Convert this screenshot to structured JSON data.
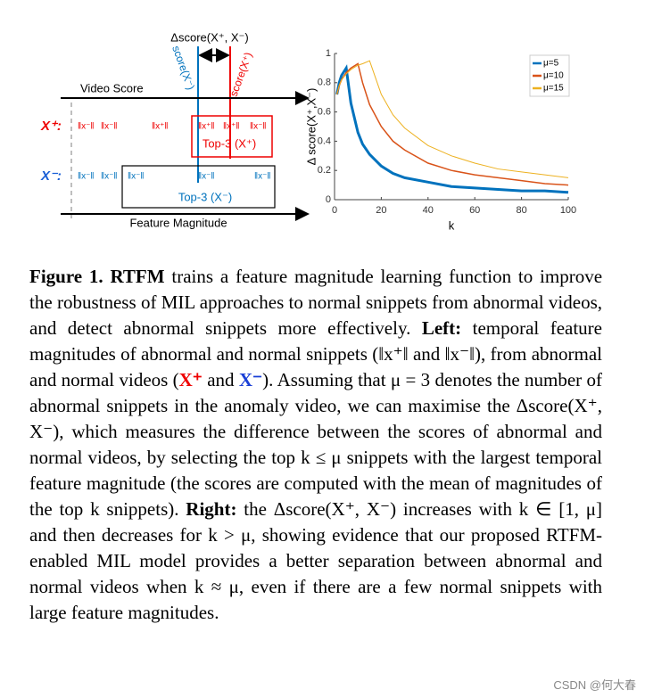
{
  "diagram": {
    "delta_title": "Δscore(X⁺, X⁻)",
    "score_neg": "score(X⁻)",
    "score_pos": "score(X⁺)",
    "video_score": "Video Score",
    "pos_label": "X⁺:",
    "neg_label": "X⁻:",
    "pos_snippets": [
      "‖x⁻‖",
      "‖x⁻‖",
      "‖x⁺‖",
      "‖x⁺‖",
      "‖x⁺‖",
      "‖x⁻‖"
    ],
    "neg_snippets": [
      "‖x⁻‖",
      "‖x⁻‖",
      "‖x⁻‖",
      "‖x⁻‖",
      "‖x⁻‖"
    ],
    "top3_pos": "Top-3 (X⁺)",
    "top3_neg": "Top-3 (X⁻)",
    "feature_magnitude": "Feature Magnitude"
  },
  "chart_data": {
    "type": "line",
    "ylabel": "Δ score(X⁺,X⁻)",
    "xlabel": "k",
    "x": [
      1,
      2,
      3,
      5,
      7,
      10,
      12,
      15,
      20,
      25,
      30,
      40,
      50,
      60,
      70,
      80,
      90,
      100
    ],
    "series": [
      {
        "name": "μ=5",
        "color": "#0072bd",
        "values": [
          0.72,
          0.8,
          0.85,
          0.9,
          0.66,
          0.46,
          0.38,
          0.31,
          0.23,
          0.18,
          0.15,
          0.12,
          0.09,
          0.08,
          0.07,
          0.06,
          0.06,
          0.05
        ]
      },
      {
        "name": "μ=10",
        "color": "#d95319",
        "values": [
          0.72,
          0.78,
          0.82,
          0.87,
          0.9,
          0.93,
          0.8,
          0.65,
          0.5,
          0.4,
          0.34,
          0.25,
          0.2,
          0.17,
          0.15,
          0.13,
          0.11,
          0.1
        ]
      },
      {
        "name": "μ=15",
        "color": "#edb120",
        "values": [
          0.72,
          0.78,
          0.82,
          0.86,
          0.89,
          0.92,
          0.93,
          0.95,
          0.72,
          0.58,
          0.49,
          0.37,
          0.3,
          0.25,
          0.21,
          0.19,
          0.17,
          0.15
        ]
      }
    ],
    "xlim": [
      0,
      100
    ],
    "xticks": [
      0,
      20,
      40,
      60,
      80,
      100
    ],
    "ylim": [
      0,
      1
    ],
    "yticks": [
      0,
      0.2,
      0.4,
      0.6,
      0.8,
      1
    ],
    "legend": "upper right"
  },
  "caption": {
    "figure_label": "Figure 1.",
    "parts": [
      "RTFM",
      " trains a feature magnitude learning function to improve the robustness of MIL approaches to normal snippets from abnormal videos, and detect abnormal snippets more effectively. ",
      "Left:",
      " temporal feature magnitudes of abnormal and normal snippets (‖x⁺‖ and ‖x⁻‖), from abnormal and normal videos (",
      "X⁺",
      " and ",
      "X⁻",
      "). Assuming that μ = 3 denotes the number of abnormal snippets in the anomaly video, we can maximise the Δscore(X⁺, X⁻), which measures the difference between the scores of abnormal and normal videos, by selecting the top k ≤ μ snippets with the largest temporal feature magnitude (the scores are computed with the mean of magnitudes of the top k snippets). ",
      "Right:",
      " the Δscore(X⁺, X⁻) increases with k ∈ [1, μ] and then decreases for k > μ, showing evidence that our proposed RTFM-enabled MIL model provides a better separation between abnormal and normal videos when k ≈ μ, even if there are a few normal snippets with large feature magnitudes."
    ]
  },
  "watermark": "CSDN @何大春"
}
